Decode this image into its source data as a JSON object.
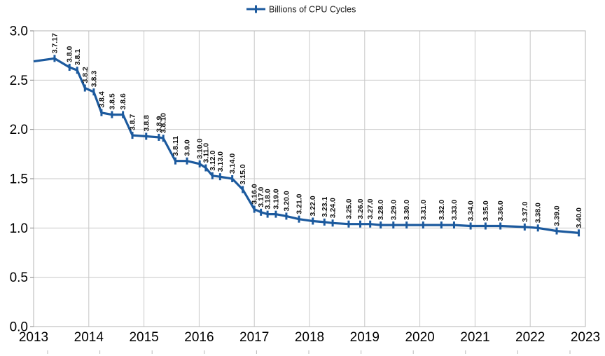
{
  "chart_data": {
    "type": "line",
    "title": "",
    "legend": {
      "position": "top-center",
      "entries": [
        "Billions of CPU Cycles"
      ]
    },
    "x_axis": {
      "label": "",
      "min": 2013,
      "max": 2023,
      "tick_labels": [
        "2013",
        "2014",
        "2015",
        "2016",
        "2017",
        "2018",
        "2019",
        "2020",
        "2021",
        "2022",
        "2023"
      ],
      "gridlines": true
    },
    "y_axis": {
      "label": "",
      "min": 0.0,
      "max": 3.0,
      "step": 0.5,
      "tick_labels": [
        "3.0",
        "2.5",
        "2.0",
        "1.5",
        "1.0",
        "0.5",
        "0.0"
      ],
      "gridlines": true
    },
    "series": [
      {
        "name": "Billions of CPU Cycles",
        "color": "#1c5a9e",
        "marker": "plus-tick",
        "line_start": {
          "x": 2013.0,
          "y": 2.69
        },
        "points": [
          {
            "label": "3.7.17",
            "x": 2013.38,
            "y": 2.72
          },
          {
            "label": "3.8.0",
            "x": 2013.65,
            "y": 2.63
          },
          {
            "label": "3.8.1",
            "x": 2013.79,
            "y": 2.6
          },
          {
            "label": "3.8.2",
            "x": 2013.93,
            "y": 2.42
          },
          {
            "label": "3.8.3",
            "x": 2014.09,
            "y": 2.38
          },
          {
            "label": "3.8.4",
            "x": 2014.23,
            "y": 2.17
          },
          {
            "label": "3.8.5",
            "x": 2014.42,
            "y": 2.15
          },
          {
            "label": "3.8.6",
            "x": 2014.62,
            "y": 2.15
          },
          {
            "label": "3.8.7",
            "x": 2014.79,
            "y": 1.94
          },
          {
            "label": "3.8.8",
            "x": 2015.04,
            "y": 1.93
          },
          {
            "label": "3.8.9",
            "x": 2015.27,
            "y": 1.92
          },
          {
            "label": "3.8.10",
            "x": 2015.35,
            "y": 1.91
          },
          {
            "label": "3.8.11",
            "x": 2015.57,
            "y": 1.68
          },
          {
            "label": "3.9.0",
            "x": 2015.78,
            "y": 1.68
          },
          {
            "label": "3.10.0",
            "x": 2016.01,
            "y": 1.65
          },
          {
            "label": "3.11.0",
            "x": 2016.12,
            "y": 1.61
          },
          {
            "label": "3.12.0",
            "x": 2016.24,
            "y": 1.53
          },
          {
            "label": "3.13.0",
            "x": 2016.38,
            "y": 1.52
          },
          {
            "label": "3.14.0",
            "x": 2016.6,
            "y": 1.5
          },
          {
            "label": "3.15.0",
            "x": 2016.79,
            "y": 1.39
          },
          {
            "label": "3.16.0",
            "x": 2017.0,
            "y": 1.19
          },
          {
            "label": "3.17.0",
            "x": 2017.12,
            "y": 1.16
          },
          {
            "label": "3.18.0",
            "x": 2017.24,
            "y": 1.14
          },
          {
            "label": "3.19.0",
            "x": 2017.39,
            "y": 1.14
          },
          {
            "label": "3.20.0",
            "x": 2017.58,
            "y": 1.12
          },
          {
            "label": "3.21.0",
            "x": 2017.81,
            "y": 1.09
          },
          {
            "label": "3.22.0",
            "x": 2018.06,
            "y": 1.07
          },
          {
            "label": "3.23.1",
            "x": 2018.27,
            "y": 1.06
          },
          {
            "label": "3.24.0",
            "x": 2018.42,
            "y": 1.05
          },
          {
            "label": "3.25.0",
            "x": 2018.71,
            "y": 1.04
          },
          {
            "label": "3.26.0",
            "x": 2018.92,
            "y": 1.04
          },
          {
            "label": "3.27.0",
            "x": 2019.1,
            "y": 1.04
          },
          {
            "label": "3.28.0",
            "x": 2019.29,
            "y": 1.03
          },
          {
            "label": "3.29.0",
            "x": 2019.52,
            "y": 1.03
          },
          {
            "label": "3.30.0",
            "x": 2019.76,
            "y": 1.03
          },
          {
            "label": "3.31.0",
            "x": 2020.06,
            "y": 1.03
          },
          {
            "label": "3.32.0",
            "x": 2020.39,
            "y": 1.03
          },
          {
            "label": "3.33.0",
            "x": 2020.62,
            "y": 1.03
          },
          {
            "label": "3.34.0",
            "x": 2020.92,
            "y": 1.02
          },
          {
            "label": "3.35.0",
            "x": 2021.19,
            "y": 1.02
          },
          {
            "label": "3.36.0",
            "x": 2021.46,
            "y": 1.02
          },
          {
            "label": "3.37.0",
            "x": 2021.9,
            "y": 1.01
          },
          {
            "label": "3.38.0",
            "x": 2022.14,
            "y": 1.0
          },
          {
            "label": "3.39.0",
            "x": 2022.48,
            "y": 0.97
          },
          {
            "label": "3.40.0",
            "x": 2022.88,
            "y": 0.95
          }
        ]
      }
    ],
    "colors": {
      "series_line": "#1c5a9e",
      "gridline": "#c8c8c8",
      "plot_border": "#b4b4b4",
      "axis_tick": "#808080",
      "data_label": "#111111",
      "background": "#ffffff"
    }
  }
}
